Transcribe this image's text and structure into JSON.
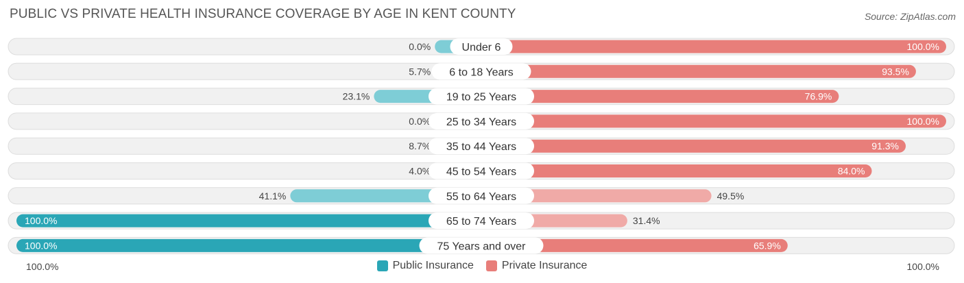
{
  "title": "PUBLIC VS PRIVATE HEALTH INSURANCE COVERAGE BY AGE IN KENT COUNTY",
  "source": "Source: ZipAtlas.com",
  "axis": {
    "left_label": "100.0%",
    "right_label": "100.0%"
  },
  "legend": {
    "public_label": "Public Insurance",
    "private_label": "Private Insurance"
  },
  "colors": {
    "public_light": "#7ecdd6",
    "public_dark": "#2aa6b6",
    "private_dark": "#e87e7a",
    "private_light": "#f0aaa7",
    "track": "#f1f1f1",
    "track_border": "#dddddd"
  },
  "chart_data": {
    "type": "bar",
    "orientation": "diverging-horizontal",
    "title": "PUBLIC VS PRIVATE HEALTH INSURANCE COVERAGE BY AGE IN KENT COUNTY",
    "categories": [
      "Under 6",
      "6 to 18 Years",
      "19 to 25 Years",
      "25 to 34 Years",
      "35 to 44 Years",
      "45 to 54 Years",
      "55 to 64 Years",
      "65 to 74 Years",
      "75 Years and over"
    ],
    "series": [
      {
        "name": "Public Insurance",
        "values": [
          0.0,
          5.7,
          23.1,
          0.0,
          8.7,
          4.0,
          41.1,
          100.0,
          100.0
        ],
        "labels": [
          "0.0%",
          "5.7%",
          "23.1%",
          "0.0%",
          "8.7%",
          "4.0%",
          "41.1%",
          "100.0%",
          "100.0%"
        ]
      },
      {
        "name": "Private Insurance",
        "values": [
          100.0,
          93.5,
          76.9,
          100.0,
          91.3,
          84.0,
          49.5,
          31.4,
          65.9
        ],
        "labels": [
          "100.0%",
          "93.5%",
          "76.9%",
          "100.0%",
          "91.3%",
          "84.0%",
          "49.5%",
          "31.4%",
          "65.9%"
        ]
      }
    ],
    "xlim": [
      -100,
      100
    ]
  }
}
